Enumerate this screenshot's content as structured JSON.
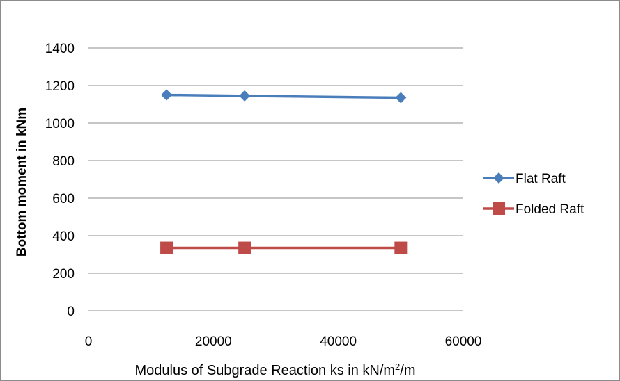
{
  "chart_data": {
    "type": "line",
    "title": "",
    "xlabel": "Modulus of Subgrade Reaction ks in kN/m²/m",
    "xlabel_parts": {
      "main": "Modulus of Subgrade Reaction ks in kN/m",
      "sup": "2",
      "tail": "/m"
    },
    "ylabel": "Bottom moment in kNm",
    "xlim": [
      0,
      60000
    ],
    "ylim": [
      0,
      1400
    ],
    "xticks": [
      0,
      20000,
      40000,
      60000
    ],
    "yticks": [
      0,
      200,
      400,
      600,
      800,
      1000,
      1200,
      1400
    ],
    "grid": {
      "horizontal": true,
      "vertical": false
    },
    "legend_position": "right",
    "series": [
      {
        "name": "Flat Raft",
        "color": "#4a7ebb",
        "marker": "diamond",
        "x": [
          12500,
          25000,
          50000
        ],
        "y": [
          1150,
          1145,
          1135
        ]
      },
      {
        "name": "Folded Raft",
        "color": "#be4b48",
        "marker": "square",
        "x": [
          12500,
          25000,
          50000
        ],
        "y": [
          335,
          335,
          335
        ]
      }
    ]
  }
}
